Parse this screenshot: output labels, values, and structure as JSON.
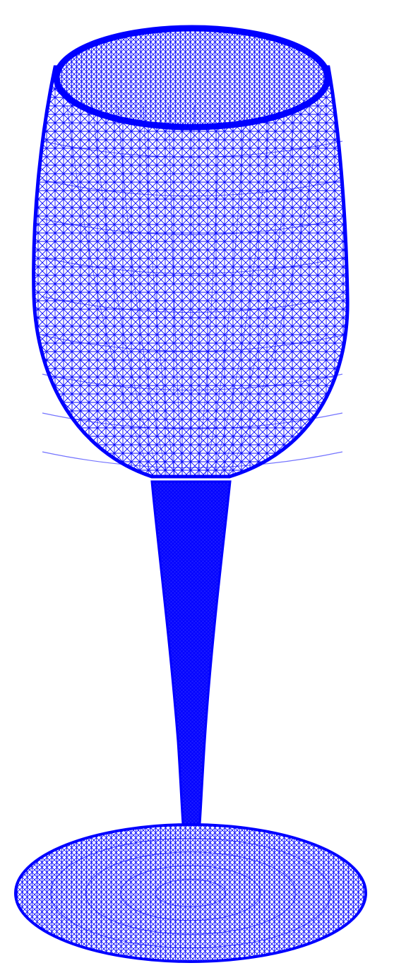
{
  "figure": {
    "subject": "wine-glass-wireframe-mesh",
    "colors": {
      "background": "#ffffff",
      "mesh": "#0000ff",
      "mesh_light": "#3333ff"
    },
    "parts": [
      "rim",
      "bowl",
      "stem",
      "base"
    ]
  }
}
